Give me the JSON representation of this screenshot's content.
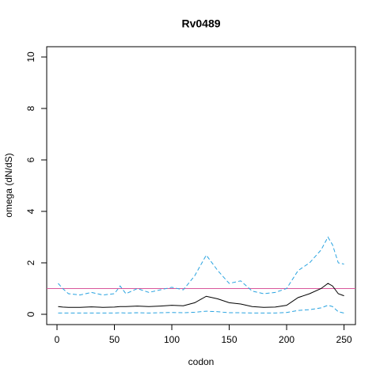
{
  "chart_data": {
    "type": "line",
    "title": "Rv0489",
    "xlabel": "codon",
    "ylabel": "omega (dN/dS)",
    "x": [
      1,
      5,
      10,
      20,
      30,
      40,
      50,
      55,
      60,
      70,
      80,
      90,
      100,
      110,
      120,
      130,
      140,
      150,
      160,
      170,
      180,
      190,
      200,
      210,
      220,
      230,
      236,
      240,
      245,
      250
    ],
    "series": [
      {
        "color": "#000000",
        "style": "solid",
        "values": [
          0.3,
          0.28,
          0.27,
          0.27,
          0.29,
          0.27,
          0.28,
          0.3,
          0.3,
          0.32,
          0.3,
          0.32,
          0.35,
          0.33,
          0.45,
          0.7,
          0.6,
          0.45,
          0.4,
          0.3,
          0.27,
          0.28,
          0.35,
          0.65,
          0.8,
          1.0,
          1.2,
          1.1,
          0.8,
          0.72
        ]
      },
      {
        "color": "#29a3e0",
        "style": "dashed",
        "values": [
          1.2,
          1.0,
          0.8,
          0.75,
          0.85,
          0.75,
          0.8,
          1.1,
          0.8,
          1.0,
          0.85,
          0.95,
          1.05,
          0.95,
          1.5,
          2.3,
          1.7,
          1.2,
          1.3,
          0.9,
          0.8,
          0.85,
          1.0,
          1.7,
          2.0,
          2.5,
          3.0,
          2.7,
          2.0,
          1.95
        ]
      },
      {
        "color": "#29a3e0",
        "style": "dashed",
        "values": [
          0.05,
          0.05,
          0.05,
          0.05,
          0.05,
          0.05,
          0.05,
          0.06,
          0.05,
          0.06,
          0.05,
          0.06,
          0.07,
          0.06,
          0.08,
          0.12,
          0.1,
          0.06,
          0.06,
          0.05,
          0.05,
          0.05,
          0.07,
          0.15,
          0.18,
          0.25,
          0.35,
          0.3,
          0.1,
          0.05
        ]
      }
    ],
    "hline": {
      "value": 1,
      "color": "#d9579b"
    },
    "xlim": [
      -8.96,
      259.96
    ],
    "xticks": [
      0,
      50,
      100,
      150,
      200,
      250
    ],
    "ylim": [
      -0.4,
      10.4
    ],
    "yticks": [
      0,
      2,
      4,
      6,
      8,
      10
    ]
  }
}
